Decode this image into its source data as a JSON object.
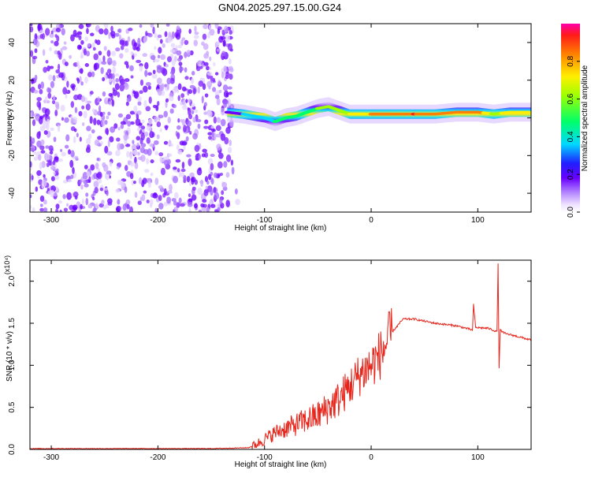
{
  "title": "GN04.2025.297.15.00.G24",
  "colorbar": {
    "label": "Normalized spectral amplitude",
    "ticks": [
      "0.0",
      "0.2",
      "0.4",
      "0.6",
      "0.8"
    ]
  },
  "chart_data": [
    {
      "type": "heatmap",
      "name": "spectrogram",
      "xlabel": "Height of straight line (km)",
      "ylabel": "Frequency (Hz)",
      "xlim": [
        -320,
        150
      ],
      "ylim": [
        -50,
        50
      ],
      "x_ticks": [
        "-300",
        "-200",
        "-100",
        "0",
        "100"
      ],
      "y_ticks": [
        "-40",
        "-20",
        "0",
        "20",
        "40"
      ],
      "noise_region_x": [
        -320,
        -130
      ],
      "signal_trace": {
        "x": [
          -135,
          -120,
          -110,
          -100,
          -90,
          -80,
          -70,
          -60,
          -50,
          -40,
          -30,
          -20,
          -10,
          0,
          10,
          20,
          40,
          60,
          80,
          100,
          115,
          130,
          150
        ],
        "freq": [
          3,
          2,
          1,
          0,
          -2,
          0,
          1,
          3,
          5,
          6,
          4,
          2,
          2,
          2,
          2,
          2,
          2,
          2,
          3,
          3,
          2,
          3,
          3
        ],
        "amplitude": [
          0.25,
          0.35,
          0.4,
          0.45,
          0.5,
          0.55,
          0.55,
          0.6,
          0.65,
          0.7,
          0.7,
          0.75,
          0.8,
          0.85,
          0.9,
          0.92,
          0.95,
          0.9,
          0.92,
          0.9,
          0.7,
          0.8,
          0.75
        ]
      }
    },
    {
      "type": "line",
      "name": "snr",
      "xlabel": "Height of straight line (km)",
      "ylabel": "SNR (10 * v/v)",
      "y_multiplier": "(x10⁴)",
      "xlim": [
        -320,
        150
      ],
      "ylim": [
        0,
        2.25
      ],
      "x_ticks": [
        "-300",
        "-200",
        "-100",
        "0",
        "100"
      ],
      "y_ticks": [
        "0.0",
        "0.5",
        "1.0",
        "1.5",
        "2.0"
      ],
      "color": "#e8251b",
      "series": [
        {
          "x": [
            -320,
            -250,
            -200,
            -150,
            -115,
            -105,
            -100,
            -90,
            -80,
            -70,
            -60,
            -50,
            -40,
            -30,
            -20,
            -10,
            0,
            10,
            20,
            30,
            40,
            60,
            80,
            95,
            96,
            98,
            110,
            118,
            119,
            120,
            121,
            125,
            135,
            150
          ],
          "y": [
            0.01,
            0.01,
            0.01,
            0.01,
            0.02,
            0.08,
            0.12,
            0.2,
            0.25,
            0.3,
            0.35,
            0.4,
            0.5,
            0.6,
            0.75,
            0.9,
            1.0,
            1.15,
            1.4,
            1.55,
            1.55,
            1.5,
            1.47,
            1.42,
            1.72,
            1.45,
            1.44,
            1.4,
            2.2,
            0.97,
            1.42,
            1.38,
            1.35,
            1.3
          ]
        }
      ]
    }
  ]
}
